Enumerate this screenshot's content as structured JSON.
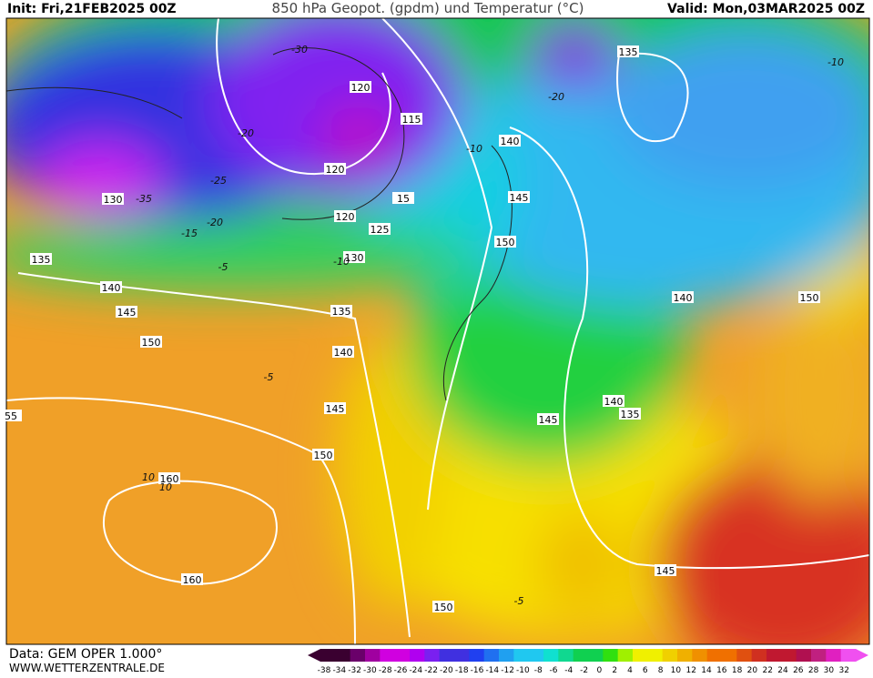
{
  "header": {
    "init": "Init: Fri,21FEB2025 00Z",
    "title": "850 hPa Geopot. (gpdm) und Temperatur (°C)",
    "valid": "Valid: Mon,03MAR2025 00Z"
  },
  "footer": {
    "data": "Data: GEM OPER 1.000°",
    "site": "WWW.WETTERZENTRALE.DE"
  },
  "colorbar": {
    "labels": [
      "-38",
      "-34",
      "-32",
      "-30",
      "-28",
      "-26",
      "-24",
      "-22",
      "-20",
      "-18",
      "-16",
      "-14",
      "-12",
      "-10",
      "-8",
      "-6",
      "-4",
      "-2",
      "0",
      "2",
      "4",
      "6",
      "8",
      "10",
      "12",
      "14",
      "16",
      "18",
      "20",
      "22",
      "24",
      "26",
      "28",
      "30",
      "32"
    ]
  },
  "geopotential_labels": [
    "135",
    "120",
    "115",
    "140",
    "120",
    "130",
    "145",
    "15",
    "120",
    "125",
    "150",
    "130",
    "135",
    "140",
    "145",
    "135",
    "140",
    "150",
    "150",
    "140",
    "145",
    "140",
    "135",
    "145",
    "150",
    "160",
    "160",
    "145",
    "150",
    "55"
  ],
  "temperature_labels": [
    "-30",
    "-10",
    "-20",
    "-10",
    "-25",
    "-35",
    "-20",
    "-15",
    "-5",
    "-10",
    "-5",
    "10",
    "10",
    "-5",
    "-20"
  ]
}
